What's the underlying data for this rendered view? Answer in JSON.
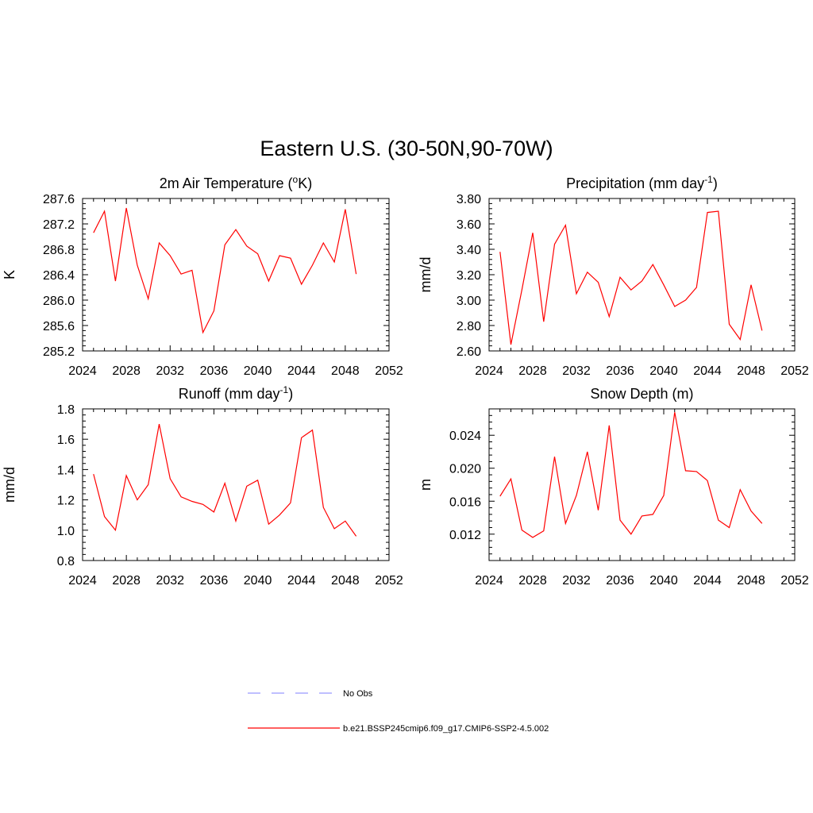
{
  "figure": {
    "title": "Eastern U.S. (30-50N,90-70W)"
  },
  "legend": {
    "items": [
      {
        "label": "No Obs",
        "color": "#9999ff",
        "style": "dashed"
      },
      {
        "label": "b.e21.BSSP245cmip6.f09_g17.CMIP6-SSP2-4.5.002",
        "color": "#ff0000",
        "style": "solid"
      }
    ]
  },
  "chart_data": [
    {
      "type": "line",
      "title": "2m Air Temperature (",
      "title_sup": "o",
      "title_after": "K)",
      "ylabel": "K",
      "xlim": [
        2024,
        2052
      ],
      "ylim": [
        285.2,
        287.6
      ],
      "xticks": [
        "2024",
        "2028",
        "2032",
        "2036",
        "2040",
        "2044",
        "2048",
        "2052"
      ],
      "yticks": [
        "285.2",
        "285.6",
        "286.0",
        "286.4",
        "286.8",
        "287.2",
        "287.6"
      ],
      "grid": false,
      "series": [
        {
          "color": "#ff0000",
          "x": [
            2025,
            2026,
            2027,
            2028,
            2029,
            2030,
            2031,
            2032,
            2033,
            2034,
            2035,
            2036,
            2037,
            2038,
            2039,
            2040,
            2041,
            2042,
            2043,
            2044,
            2045,
            2046,
            2047,
            2048,
            2049
          ],
          "values": [
            287.06,
            287.4,
            286.3,
            287.45,
            286.55,
            286.02,
            286.9,
            286.7,
            286.41,
            286.47,
            285.49,
            285.83,
            286.87,
            287.11,
            286.85,
            286.73,
            286.3,
            286.7,
            286.66,
            286.25,
            286.55,
            286.9,
            286.6,
            287.43,
            286.41
          ]
        }
      ]
    },
    {
      "type": "line",
      "title": "Precipitation (mm day",
      "title_sup": "-1",
      "title_after": ")",
      "ylabel": "mm/d",
      "xlim": [
        2024,
        2052
      ],
      "ylim": [
        2.6,
        3.8
      ],
      "xticks": [
        "2024",
        "2028",
        "2032",
        "2036",
        "2040",
        "2044",
        "2048",
        "2052"
      ],
      "yticks": [
        "2.60",
        "2.80",
        "3.00",
        "3.20",
        "3.40",
        "3.60",
        "3.80"
      ],
      "grid": false,
      "series": [
        {
          "color": "#ff0000",
          "x": [
            2025,
            2026,
            2027,
            2028,
            2029,
            2030,
            2031,
            2032,
            2033,
            2034,
            2035,
            2036,
            2037,
            2038,
            2039,
            2040,
            2041,
            2042,
            2043,
            2044,
            2045,
            2046,
            2047,
            2048,
            2049
          ],
          "values": [
            3.38,
            2.65,
            3.08,
            3.53,
            2.83,
            3.44,
            3.59,
            3.05,
            3.22,
            3.14,
            2.87,
            3.18,
            3.08,
            3.15,
            3.28,
            3.12,
            2.95,
            3.0,
            3.1,
            3.69,
            3.7,
            2.81,
            2.69,
            3.12,
            2.76
          ]
        }
      ]
    },
    {
      "type": "line",
      "title": "Runoff (mm day",
      "title_sup": "-1",
      "title_after": ")",
      "ylabel": "mm/d",
      "xlim": [
        2024,
        2052
      ],
      "ylim": [
        0.8,
        1.8
      ],
      "xticks": [
        "2024",
        "2028",
        "2032",
        "2036",
        "2040",
        "2044",
        "2048",
        "2052"
      ],
      "yticks": [
        "0.8",
        "1.0",
        "1.2",
        "1.4",
        "1.6",
        "1.8"
      ],
      "grid": false,
      "series": [
        {
          "color": "#ff0000",
          "x": [
            2025,
            2026,
            2027,
            2028,
            2029,
            2030,
            2031,
            2032,
            2033,
            2034,
            2035,
            2036,
            2037,
            2038,
            2039,
            2040,
            2041,
            2042,
            2043,
            2044,
            2045,
            2046,
            2047,
            2048,
            2049
          ],
          "values": [
            1.37,
            1.09,
            1.0,
            1.36,
            1.2,
            1.3,
            1.7,
            1.34,
            1.22,
            1.19,
            1.17,
            1.12,
            1.31,
            1.06,
            1.29,
            1.33,
            1.04,
            1.1,
            1.18,
            1.61,
            1.66,
            1.15,
            1.01,
            1.06,
            0.96
          ]
        }
      ]
    },
    {
      "type": "line",
      "title": "Snow Depth (m)",
      "title_sup": "",
      "title_after": "",
      "ylabel": "m",
      "xlim": [
        2024,
        2052
      ],
      "ylim": [
        0.0088,
        0.0272
      ],
      "xticks": [
        "2024",
        "2028",
        "2032",
        "2036",
        "2040",
        "2044",
        "2048",
        "2052"
      ],
      "yticks": [
        "0.012",
        "0.016",
        "0.020",
        "0.024"
      ],
      "ytick_values": [
        0.012,
        0.016,
        0.02,
        0.024
      ],
      "grid": false,
      "series": [
        {
          "color": "#ff0000",
          "x": [
            2025,
            2026,
            2027,
            2028,
            2029,
            2030,
            2031,
            2032,
            2033,
            2034,
            2035,
            2036,
            2037,
            2038,
            2039,
            2040,
            2041,
            2042,
            2043,
            2044,
            2045,
            2046,
            2047,
            2048,
            2049
          ],
          "values": [
            0.0166,
            0.0187,
            0.0125,
            0.0116,
            0.0124,
            0.0214,
            0.0133,
            0.0167,
            0.022,
            0.0149,
            0.0252,
            0.0137,
            0.012,
            0.0142,
            0.0144,
            0.0167,
            0.0268,
            0.0197,
            0.0196,
            0.0185,
            0.0137,
            0.0128,
            0.0174,
            0.0148,
            0.0133
          ]
        }
      ]
    }
  ]
}
